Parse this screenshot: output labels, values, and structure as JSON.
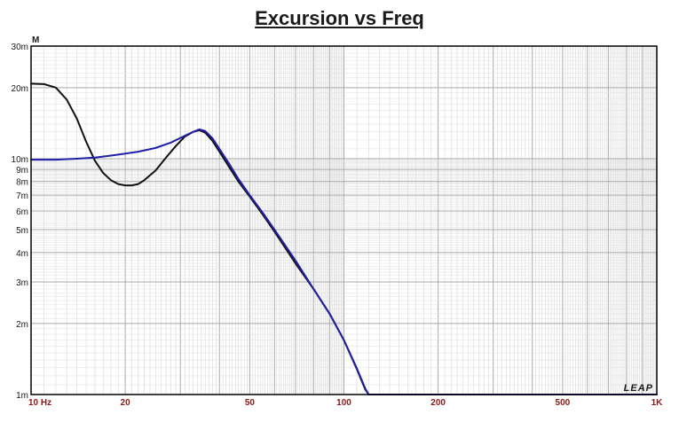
{
  "chart_data": {
    "type": "line",
    "title": "Excursion vs Freq",
    "unit_label": "M",
    "brand": "LEAP",
    "xscale": "log",
    "yscale": "log",
    "xlim": [
      10,
      1000
    ],
    "ylim": [
      0.001,
      0.03
    ],
    "grid": true,
    "x_ticks": [
      {
        "value": 10,
        "label": "10  Hz"
      },
      {
        "value": 20,
        "label": "20"
      },
      {
        "value": 50,
        "label": "50"
      },
      {
        "value": 100,
        "label": "100"
      },
      {
        "value": 200,
        "label": "200"
      },
      {
        "value": 500,
        "label": "500"
      },
      {
        "value": 1000,
        "label": "1K"
      }
    ],
    "y_ticks": [
      {
        "value": 0.03,
        "label": "30m"
      },
      {
        "value": 0.02,
        "label": "20m"
      },
      {
        "value": 0.01,
        "label": "10m"
      },
      {
        "value": 0.009,
        "label": "9m"
      },
      {
        "value": 0.008,
        "label": "8m"
      },
      {
        "value": 0.007,
        "label": "7m"
      },
      {
        "value": 0.006,
        "label": "6m"
      },
      {
        "value": 0.005,
        "label": "5m"
      },
      {
        "value": 0.004,
        "label": "4m"
      },
      {
        "value": 0.003,
        "label": "3m"
      },
      {
        "value": 0.002,
        "label": "2m"
      },
      {
        "value": 0.001,
        "label": "1m"
      }
    ],
    "series": [
      {
        "color": "#111111",
        "points": [
          [
            10,
            0.0208
          ],
          [
            11,
            0.0207
          ],
          [
            12,
            0.02
          ],
          [
            13,
            0.0178
          ],
          [
            14,
            0.0148
          ],
          [
            15,
            0.0118
          ],
          [
            16,
            0.0098
          ],
          [
            17,
            0.0087
          ],
          [
            18,
            0.0081
          ],
          [
            19,
            0.0078
          ],
          [
            20,
            0.0077
          ],
          [
            21,
            0.0077
          ],
          [
            22,
            0.0078
          ],
          [
            23,
            0.0081
          ],
          [
            25,
            0.0089
          ],
          [
            27,
            0.0101
          ],
          [
            29,
            0.0113
          ],
          [
            31,
            0.0124
          ],
          [
            33,
            0.013
          ],
          [
            34.5,
            0.0132
          ],
          [
            36,
            0.0129
          ],
          [
            38,
            0.0119
          ],
          [
            40,
            0.0107
          ],
          [
            43,
            0.0092
          ],
          [
            46,
            0.008
          ],
          [
            50,
            0.0069
          ],
          [
            55,
            0.0058
          ],
          [
            60,
            0.0049
          ],
          [
            70,
            0.0036
          ],
          [
            80,
            0.0028
          ],
          [
            90,
            0.0022
          ],
          [
            100,
            0.0017
          ],
          [
            110,
            0.00128
          ],
          [
            117,
            0.00105
          ],
          [
            120,
            0.001
          ],
          [
            200,
            0.001
          ],
          [
            500,
            0.001
          ],
          [
            1000,
            0.001
          ]
        ]
      },
      {
        "color": "#1f1fa8",
        "points": [
          [
            10,
            0.0099
          ],
          [
            12,
            0.0099
          ],
          [
            14,
            0.01
          ],
          [
            16,
            0.0101
          ],
          [
            18,
            0.0103
          ],
          [
            20,
            0.0105
          ],
          [
            22,
            0.0107
          ],
          [
            25,
            0.0111
          ],
          [
            28,
            0.0117
          ],
          [
            31,
            0.0125
          ],
          [
            33,
            0.013
          ],
          [
            34.5,
            0.0133
          ],
          [
            36,
            0.0131
          ],
          [
            38,
            0.0122
          ],
          [
            40,
            0.011
          ],
          [
            43,
            0.0095
          ],
          [
            46,
            0.0082
          ],
          [
            50,
            0.007
          ],
          [
            55,
            0.0059
          ],
          [
            60,
            0.005
          ],
          [
            70,
            0.0037
          ],
          [
            80,
            0.0028
          ],
          [
            90,
            0.0022
          ],
          [
            100,
            0.0017
          ],
          [
            110,
            0.00129
          ],
          [
            117,
            0.00106
          ],
          [
            120,
            0.001
          ],
          [
            200,
            0.001
          ],
          [
            500,
            0.001
          ],
          [
            1000,
            0.001
          ]
        ]
      }
    ]
  }
}
